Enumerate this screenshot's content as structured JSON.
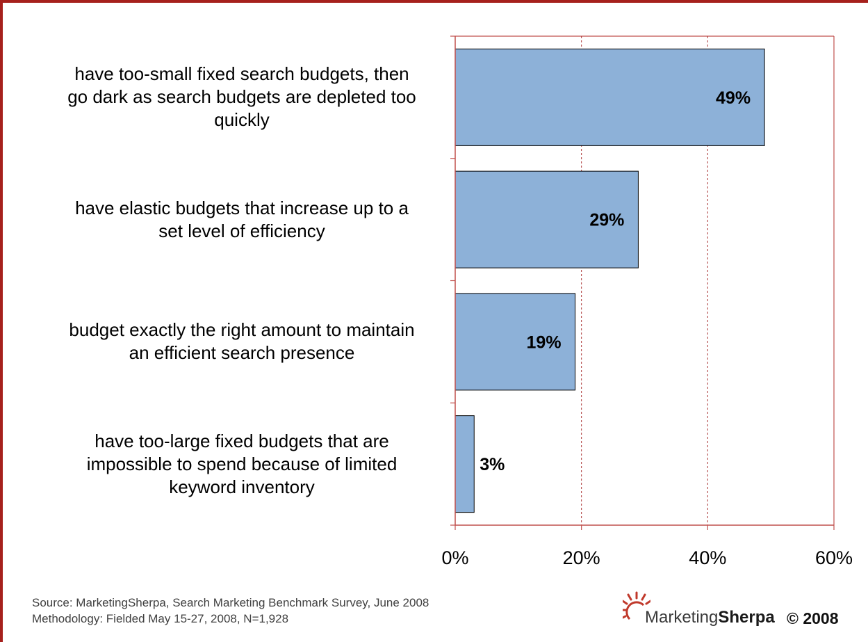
{
  "chart_data": {
    "type": "bar",
    "orientation": "horizontal",
    "categories": [
      "have too-small fixed search budgets, then go dark as search budgets are depleted too quickly",
      "have elastic budgets that increase up to a set level of efficiency",
      "budget exactly the right amount to maintain an efficient search presence",
      "have too-large fixed budgets that are impossible to spend because of limited keyword inventory"
    ],
    "category_lines": [
      [
        "have too-small fixed search budgets, then",
        "go dark as search budgets are depleted too",
        "quickly"
      ],
      [
        "have elastic budgets that increase up to a",
        "set level of efficiency"
      ],
      [
        "budget exactly the right amount to maintain",
        "an efficient search presence"
      ],
      [
        "have too-large fixed budgets that are",
        "impossible to spend because of limited",
        "keyword inventory"
      ]
    ],
    "values": [
      49,
      29,
      19,
      3
    ],
    "data_labels": [
      "49%",
      "29%",
      "19%",
      "3%"
    ],
    "xlim": [
      0,
      60
    ],
    "xticks": [
      0,
      20,
      40,
      60
    ],
    "xtick_labels": [
      "0%",
      "20%",
      "40%",
      "60%"
    ],
    "grid": "vertical dashed",
    "bar_color": "#8db1d8",
    "axis_color": "#c0504d"
  },
  "footer": {
    "source_line": "Source: MarketingSherpa, Search Marketing Benchmark Survey, June 2008",
    "methodology_line": "Methodology: Fielded May 15-27, 2008, N=1,928"
  },
  "logo": {
    "brand_light": "Marketing",
    "brand_bold": "Sherpa",
    "copyright": "© 2008",
    "icon": "sunburst-icon"
  }
}
